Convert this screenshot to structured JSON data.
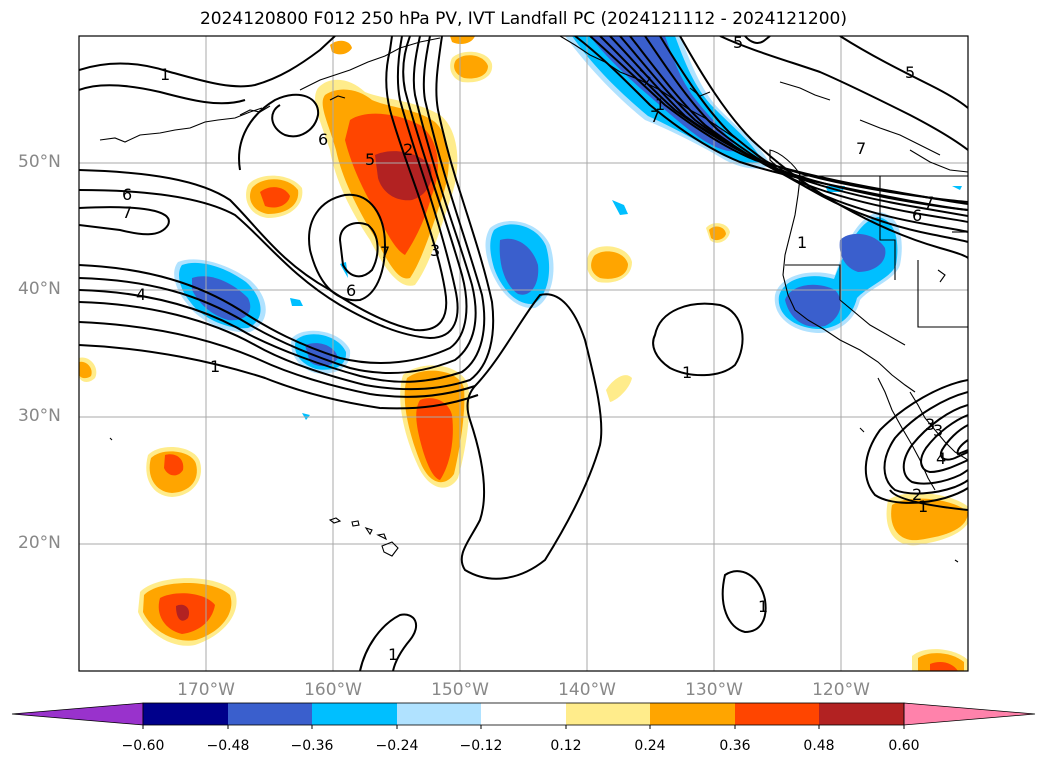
{
  "title": "2024120800 F012 250 hPa PV, IVT Landfall PC (2024121112 - 2024121200)",
  "map": {
    "projection": "cylindrical",
    "lon_range": [
      -180,
      -110
    ],
    "lat_range": [
      10,
      60
    ],
    "lat_labels": [
      "50°N",
      "40°N",
      "30°N",
      "20°N"
    ],
    "lon_labels": [
      "170°W",
      "160°W",
      "150°W",
      "140°W",
      "130°W",
      "120°W"
    ],
    "contour_labels": [
      "1",
      "5",
      "5",
      "7",
      "7",
      "6",
      "6",
      "7",
      "4",
      "1",
      "6",
      "7",
      "3",
      "5",
      "2",
      "1",
      "1",
      "3",
      "3",
      "4",
      "2",
      "1",
      "1",
      "1",
      "6",
      "7",
      "1"
    ]
  },
  "colorbar": {
    "ticks": [
      "−0.60",
      "−0.48",
      "−0.36",
      "−0.24",
      "−0.12",
      "0.12",
      "0.24",
      "0.36",
      "0.48",
      "0.60"
    ],
    "colors": [
      "#9932cc",
      "#00008b",
      "#3a5fcd",
      "#00bfff",
      "#b0e2ff",
      "#ffffff",
      "#ffec8b",
      "#ffa500",
      "#ff4500",
      "#b22222",
      "#ff82ab"
    ],
    "extend": "both"
  },
  "colors": {
    "coast": "#000000",
    "grid": "#a9a9a9",
    "label": "#888888"
  }
}
